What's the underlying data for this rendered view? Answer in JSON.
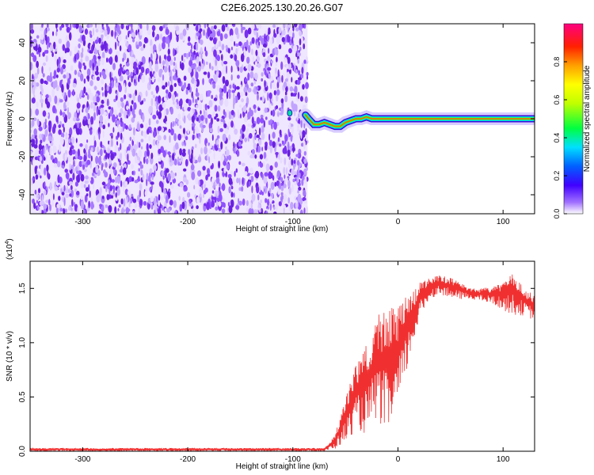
{
  "title": "C2E6.2025.130.20.26.G07",
  "chart_data": [
    {
      "type": "heatmap",
      "xlabel": "Height of straight line (km)",
      "ylabel": "Frequency (Hz)",
      "xlim": [
        -350,
        130
      ],
      "ylim": [
        -50,
        50
      ],
      "xticks": [
        -300,
        -200,
        -100,
        0,
        100
      ],
      "yticks": [
        -40,
        -20,
        0,
        20,
        40
      ],
      "noise_region_x": [
        -350,
        -86
      ],
      "signal_track": {
        "x": [
          -88,
          -85,
          -80,
          -75,
          -70,
          -65,
          -60,
          -55,
          -50,
          -45,
          -40,
          -35,
          -30,
          -25,
          -20,
          -10,
          0,
          20,
          50,
          80,
          110,
          130
        ],
        "freq": [
          2,
          0,
          -3,
          -3,
          -2,
          -3,
          -4,
          -4,
          -2,
          -1,
          0,
          0,
          1,
          0,
          0,
          0,
          0,
          0,
          0,
          0,
          0,
          0
        ]
      },
      "isolated_blob": {
        "x": -103,
        "freq": 3
      },
      "grid": false
    },
    {
      "type": "colorbar",
      "label": "Normalized spectral amplitude",
      "range": [
        0,
        1
      ],
      "ticks": [
        "0.0",
        "0.2",
        "0.4",
        "0.6",
        "0.8"
      ],
      "tick_values": [
        0,
        0.2,
        0.4,
        0.6,
        0.8
      ],
      "colors": [
        "#ffffff",
        "#a070ff",
        "#4000ff",
        "#0060ff",
        "#00e0ff",
        "#00ff40",
        "#c0ff00",
        "#ffff00",
        "#ffa000",
        "#ff2000",
        "#ff0080"
      ]
    },
    {
      "type": "line",
      "xlabel": "Height of straight line (km)",
      "ylabel": "SNR (10 * v/v)",
      "y_multiplier": "(x10",
      "y_multiplier_exp": "4",
      "y_multiplier_close": ")",
      "xlim": [
        -350,
        130
      ],
      "ylim": [
        0,
        17500
      ],
      "xticks": [
        -300,
        -200,
        -100,
        0,
        100
      ],
      "yticks": [
        0,
        5000,
        10000,
        15000
      ],
      "ytick_labels": [
        "0.0",
        "0.5",
        "1.0",
        "1.5"
      ],
      "color": "#f03030",
      "envelope": {
        "x": [
          -350,
          -70,
          -60,
          -50,
          -40,
          -30,
          -20,
          -10,
          0,
          10,
          20,
          30,
          40,
          50,
          60,
          70,
          80,
          90,
          100,
          110,
          120,
          130
        ],
        "low": [
          0,
          0,
          200,
          800,
          2000,
          1500,
          3000,
          1500,
          3500,
          8000,
          12000,
          14000,
          14500,
          14000,
          14000,
          14000,
          13800,
          13500,
          13000,
          12500,
          12500,
          12000
        ],
        "high": [
          300,
          300,
          1500,
          5000,
          8000,
          10000,
          12500,
          13000,
          13500,
          14500,
          15500,
          16000,
          16200,
          16000,
          15500,
          15000,
          15000,
          15200,
          15500,
          16500,
          15000,
          14500
        ]
      }
    }
  ]
}
